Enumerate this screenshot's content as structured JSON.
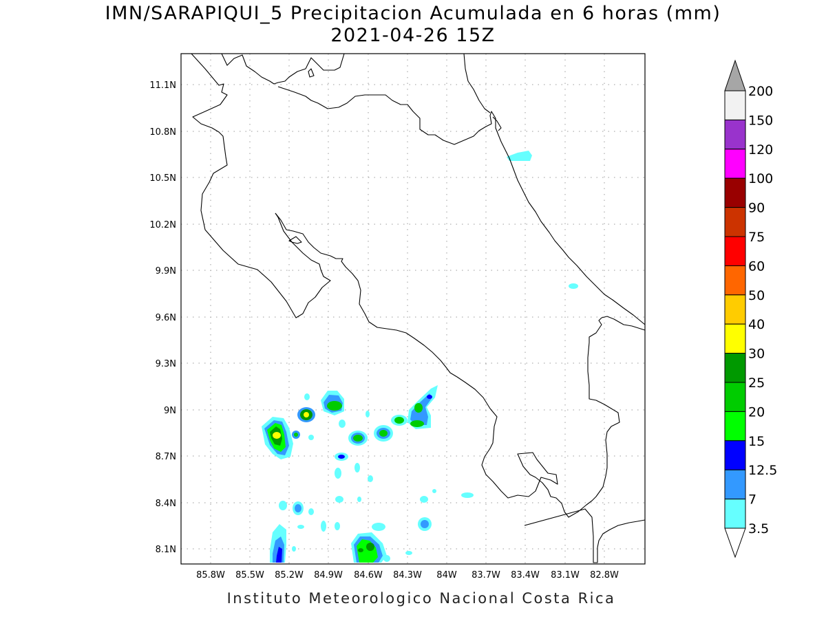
{
  "title": "IMN/SARAPIQUI_5 Precipitacion Acumulada en 6 horas (mm)",
  "subtitle": "2021-04-26 15Z",
  "footer": "Instituto Meteorologico Nacional Costa Rica",
  "lat_labels": [
    "11.1N",
    "10.8N",
    "10.5N",
    "10.2N",
    "9.9N",
    "9.6N",
    "9.3N",
    "9N",
    "8.7N",
    "8.4N",
    "8.1N"
  ],
  "lon_labels": [
    "85.8W",
    "85.5W",
    "85.2W",
    "84.9W",
    "84.6W",
    "84.3W",
    "84W",
    "83.7W",
    "83.4W",
    "83.1W",
    "82.8W"
  ],
  "colorbar": {
    "labels": [
      "200",
      "150",
      "120",
      "100",
      "90",
      "75",
      "60",
      "50",
      "40",
      "30",
      "25",
      "20",
      "15",
      "12.5",
      "7",
      "3.5"
    ],
    "colors": [
      "#f2f2f2",
      "#9933cc",
      "#ff00ff",
      "#990000",
      "#cc3300",
      "#ff0000",
      "#ff6600",
      "#ffcc00",
      "#ffff00",
      "#009900",
      "#00cc00",
      "#00ff00",
      "#0000ff",
      "#3399ff",
      "#66ffff"
    ],
    "top_arrow_color": "#a6a6a6",
    "bottom_arrow_color": "#ffffff"
  }
}
